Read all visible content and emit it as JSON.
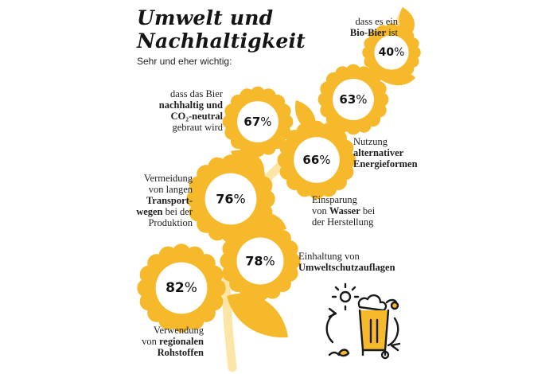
{
  "title": {
    "line1": "Umwelt und",
    "line2": "Nachhaltigkeit"
  },
  "subtitle": "Sehr und eher wichtig:",
  "colors": {
    "yellow": "#f6b92b",
    "pale_stem": "#fbe6a8",
    "ink": "#1a1a1a"
  },
  "items": [
    {
      "id": "bio",
      "value": 40,
      "pct": "40",
      "label_lines": [
        {
          "t": "dass es ein",
          "b": false
        },
        {
          "t": "Bio-Bier",
          "b": true,
          "tail": " ist"
        }
      ]
    },
    {
      "id": "nachhaltig",
      "value": 67,
      "pct": "67",
      "label_lines": [
        {
          "t": "dass das Bier",
          "b": false
        },
        {
          "t": "nachhaltig und",
          "b": true
        },
        {
          "t": "CO₂-neutral",
          "b": true
        },
        {
          "t": "gebraut wird",
          "b": false
        }
      ]
    },
    {
      "id": "energie",
      "value": 63,
      "pct": "63",
      "label_lines": [
        {
          "t": "Nutzung",
          "b": false
        },
        {
          "t": "alternativer",
          "b": true
        },
        {
          "t": "Energieformen",
          "b": true
        }
      ]
    },
    {
      "id": "wasser",
      "value": 66,
      "pct": "66",
      "label_lines": [
        {
          "t": "Einsparung",
          "b": false
        },
        {
          "t": "von ",
          "b": false,
          "bold_tail": "Wasser",
          "tail": " bei"
        },
        {
          "t": "der Herstellung",
          "b": false
        }
      ]
    },
    {
      "id": "transport",
      "value": 76,
      "pct": "76",
      "label_lines": [
        {
          "t": "Vermeidung",
          "b": false
        },
        {
          "t": "von langen",
          "b": false
        },
        {
          "t": "Transport-",
          "b": true
        },
        {
          "t": "wegen",
          "b": true,
          "tail": " bei der"
        },
        {
          "t": "Produktion",
          "b": false
        }
      ]
    },
    {
      "id": "umweltschutz",
      "value": 78,
      "pct": "78",
      "label_lines": [
        {
          "t": "Einhaltung von",
          "b": false
        },
        {
          "t": "Umweltschutzauflagen",
          "b": true
        }
      ]
    },
    {
      "id": "regional",
      "value": 82,
      "pct": "82",
      "label_lines": [
        {
          "t": "Verwendung",
          "b": false
        },
        {
          "t": "von ",
          "b": false,
          "bold_tail": "regionalen"
        },
        {
          "t": "Rohstoffen",
          "b": true
        }
      ]
    }
  ],
  "percent_sign": "%",
  "icons": {
    "beer": "beer-glass-recycle-icon",
    "flower": "sunflower-icon"
  }
}
